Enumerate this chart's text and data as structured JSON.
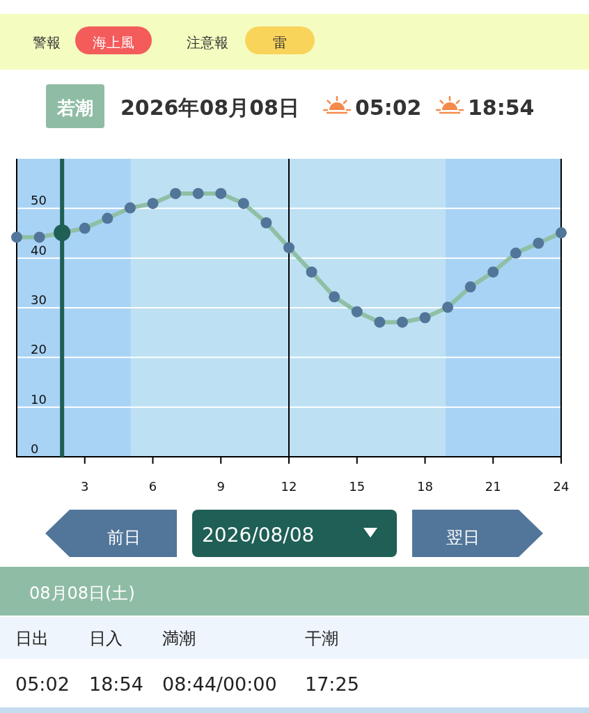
{
  "chart_data": {
    "type": "line",
    "title": "2026年08月08日",
    "x": [
      0,
      1,
      2,
      3,
      4,
      5,
      6,
      7,
      8,
      9,
      10,
      11,
      12,
      13,
      14,
      15,
      16,
      17,
      18,
      19,
      20,
      21,
      22,
      23,
      24
    ],
    "series": [
      {
        "color": "#8fbfa5",
        "colors": [
          "#52769a",
          "#52769a",
          "#1f5f55",
          "#52769a",
          "#52769a",
          "#52769a",
          "#52769a",
          "#52769a",
          "#52769a",
          "#52769a",
          "#52769a",
          "#52769a",
          "#52769a",
          "#52769a",
          "#52769a",
          "#52769a",
          "#52769a",
          "#52769a",
          "#52769a",
          "#52769a",
          "#52769a",
          "#52769a",
          "#52769a",
          "#52769a",
          "#52769a"
        ],
        "values": [
          44.2,
          44.2,
          45.1,
          46.0,
          48.0,
          50.1,
          51.0,
          53.0,
          53.0,
          53.0,
          51.0,
          47.1,
          42.1,
          37.2,
          32.2,
          29.2,
          27.1,
          27.1,
          28.0,
          30.1,
          34.2,
          37.2,
          41.0,
          43.0,
          45.1
        ]
      }
    ],
    "marker": "circle",
    "grid": "y",
    "xlim": [
      0,
      24
    ],
    "xticks": [
      3,
      6,
      9,
      12,
      15,
      18,
      21,
      24
    ],
    "ylim": [
      0,
      60
    ],
    "yticks": [
      0,
      10,
      20,
      30,
      40,
      50
    ],
    "bands": [
      {
        "axis": "x",
        "from": 0,
        "to": 5.03,
        "color": "#a8d3f5"
      },
      {
        "axis": "x",
        "from": 5.03,
        "to": 18.9,
        "color": "#bde0f2"
      },
      {
        "axis": "x",
        "from": 18.9,
        "to": 24,
        "color": "#a8d3f5"
      }
    ],
    "ref_lines": [
      {
        "axis": "x",
        "value": 2,
        "color": "#1f5f55"
      },
      {
        "axis": "x",
        "value": 12,
        "color": "#000000"
      }
    ],
    "annotations": [
      "警報",
      "海上風",
      "注意報",
      "雷",
      "若潮",
      "05:02",
      "18:54",
      "前日",
      "2026/08/08",
      "翌日",
      "08月08日(土)",
      "日出",
      "日入",
      "満潮",
      "干潮",
      "05:02",
      "18:54",
      "08:44/00:00",
      "17:25"
    ]
  }
}
